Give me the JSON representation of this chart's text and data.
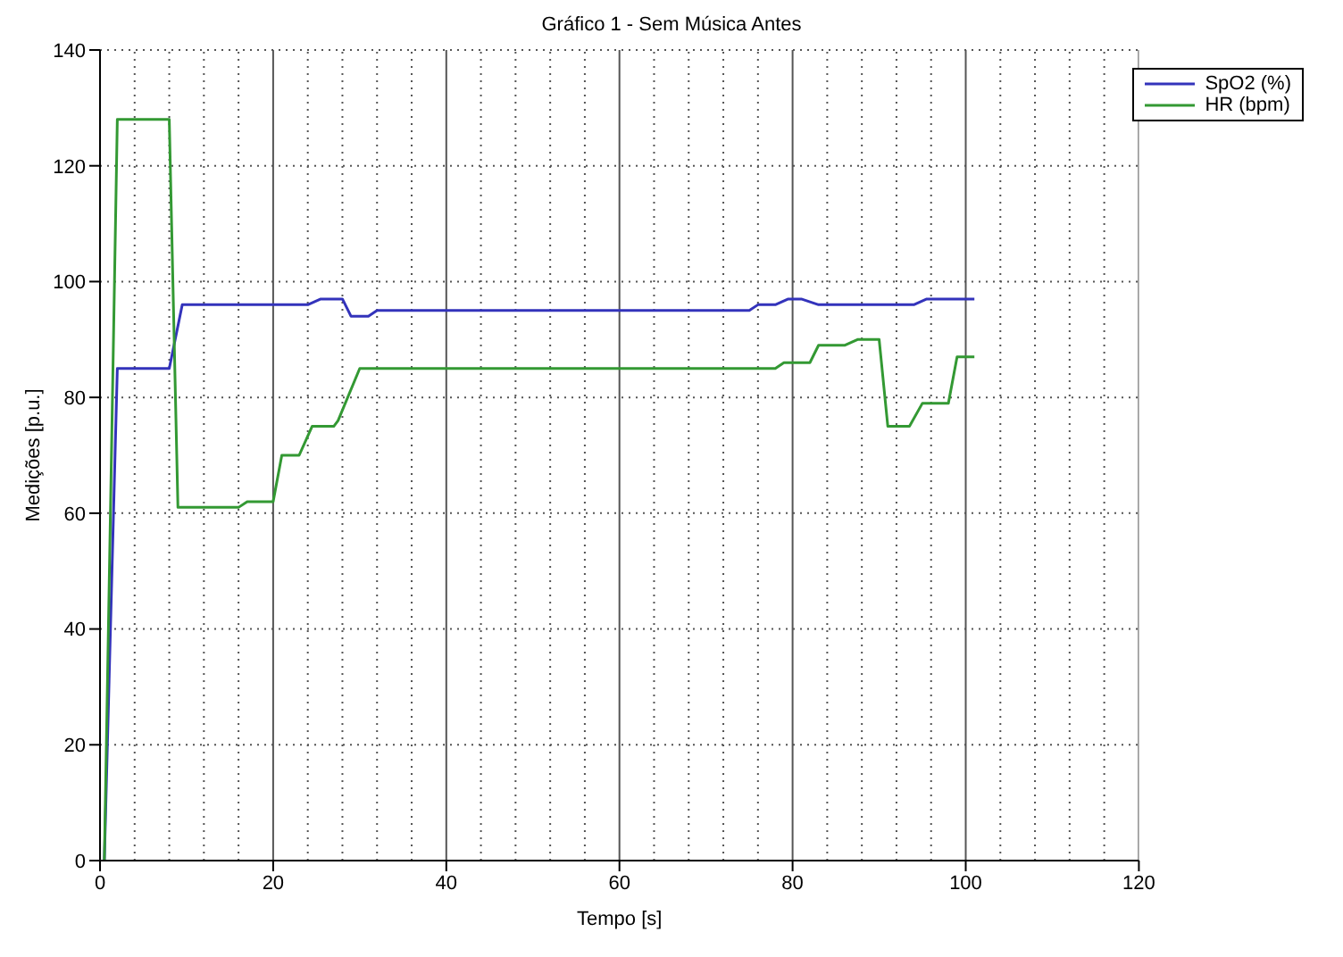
{
  "chart_data": {
    "type": "line",
    "title": "Gráfico 1 - Sem Música Antes",
    "xlabel": "Tempo [s]",
    "ylabel": "Medições [p.u.]",
    "xlim": [
      0,
      120
    ],
    "xticks": [
      0,
      20,
      40,
      60,
      80,
      100,
      120
    ],
    "ylim": [
      0,
      140
    ],
    "yticks": [
      0,
      20,
      40,
      60,
      80,
      100,
      120,
      140
    ],
    "grid": true,
    "legend": "top right",
    "line_style": "solid",
    "marker": "none",
    "series": [
      {
        "name": "SpO2 (%)",
        "color": "#3333bb",
        "x": [
          0.5,
          2,
          8,
          9.5,
          24,
          25.5,
          28,
          29,
          31,
          32,
          75,
          76,
          78,
          79.5,
          81,
          83,
          94,
          95.5,
          101
        ],
        "values": [
          0,
          85,
          85,
          96,
          96,
          97,
          97,
          94,
          94,
          95,
          95,
          96,
          96,
          97,
          97,
          96,
          96,
          97,
          97
        ]
      },
      {
        "name": "HR (bpm)",
        "color": "#339933",
        "x": [
          0.5,
          2,
          8,
          9,
          16,
          17,
          20,
          21,
          23,
          24.5,
          27,
          27.5,
          30,
          78,
          79,
          82,
          83,
          86,
          87.5,
          90,
          91,
          93.5,
          95,
          98,
          99,
          101
        ],
        "values": [
          0,
          128,
          128,
          61,
          61,
          62,
          62,
          70,
          70,
          75,
          75,
          76,
          85,
          85,
          86,
          86,
          89,
          89,
          90,
          90,
          75,
          75,
          79,
          79,
          87,
          87
        ]
      }
    ]
  }
}
